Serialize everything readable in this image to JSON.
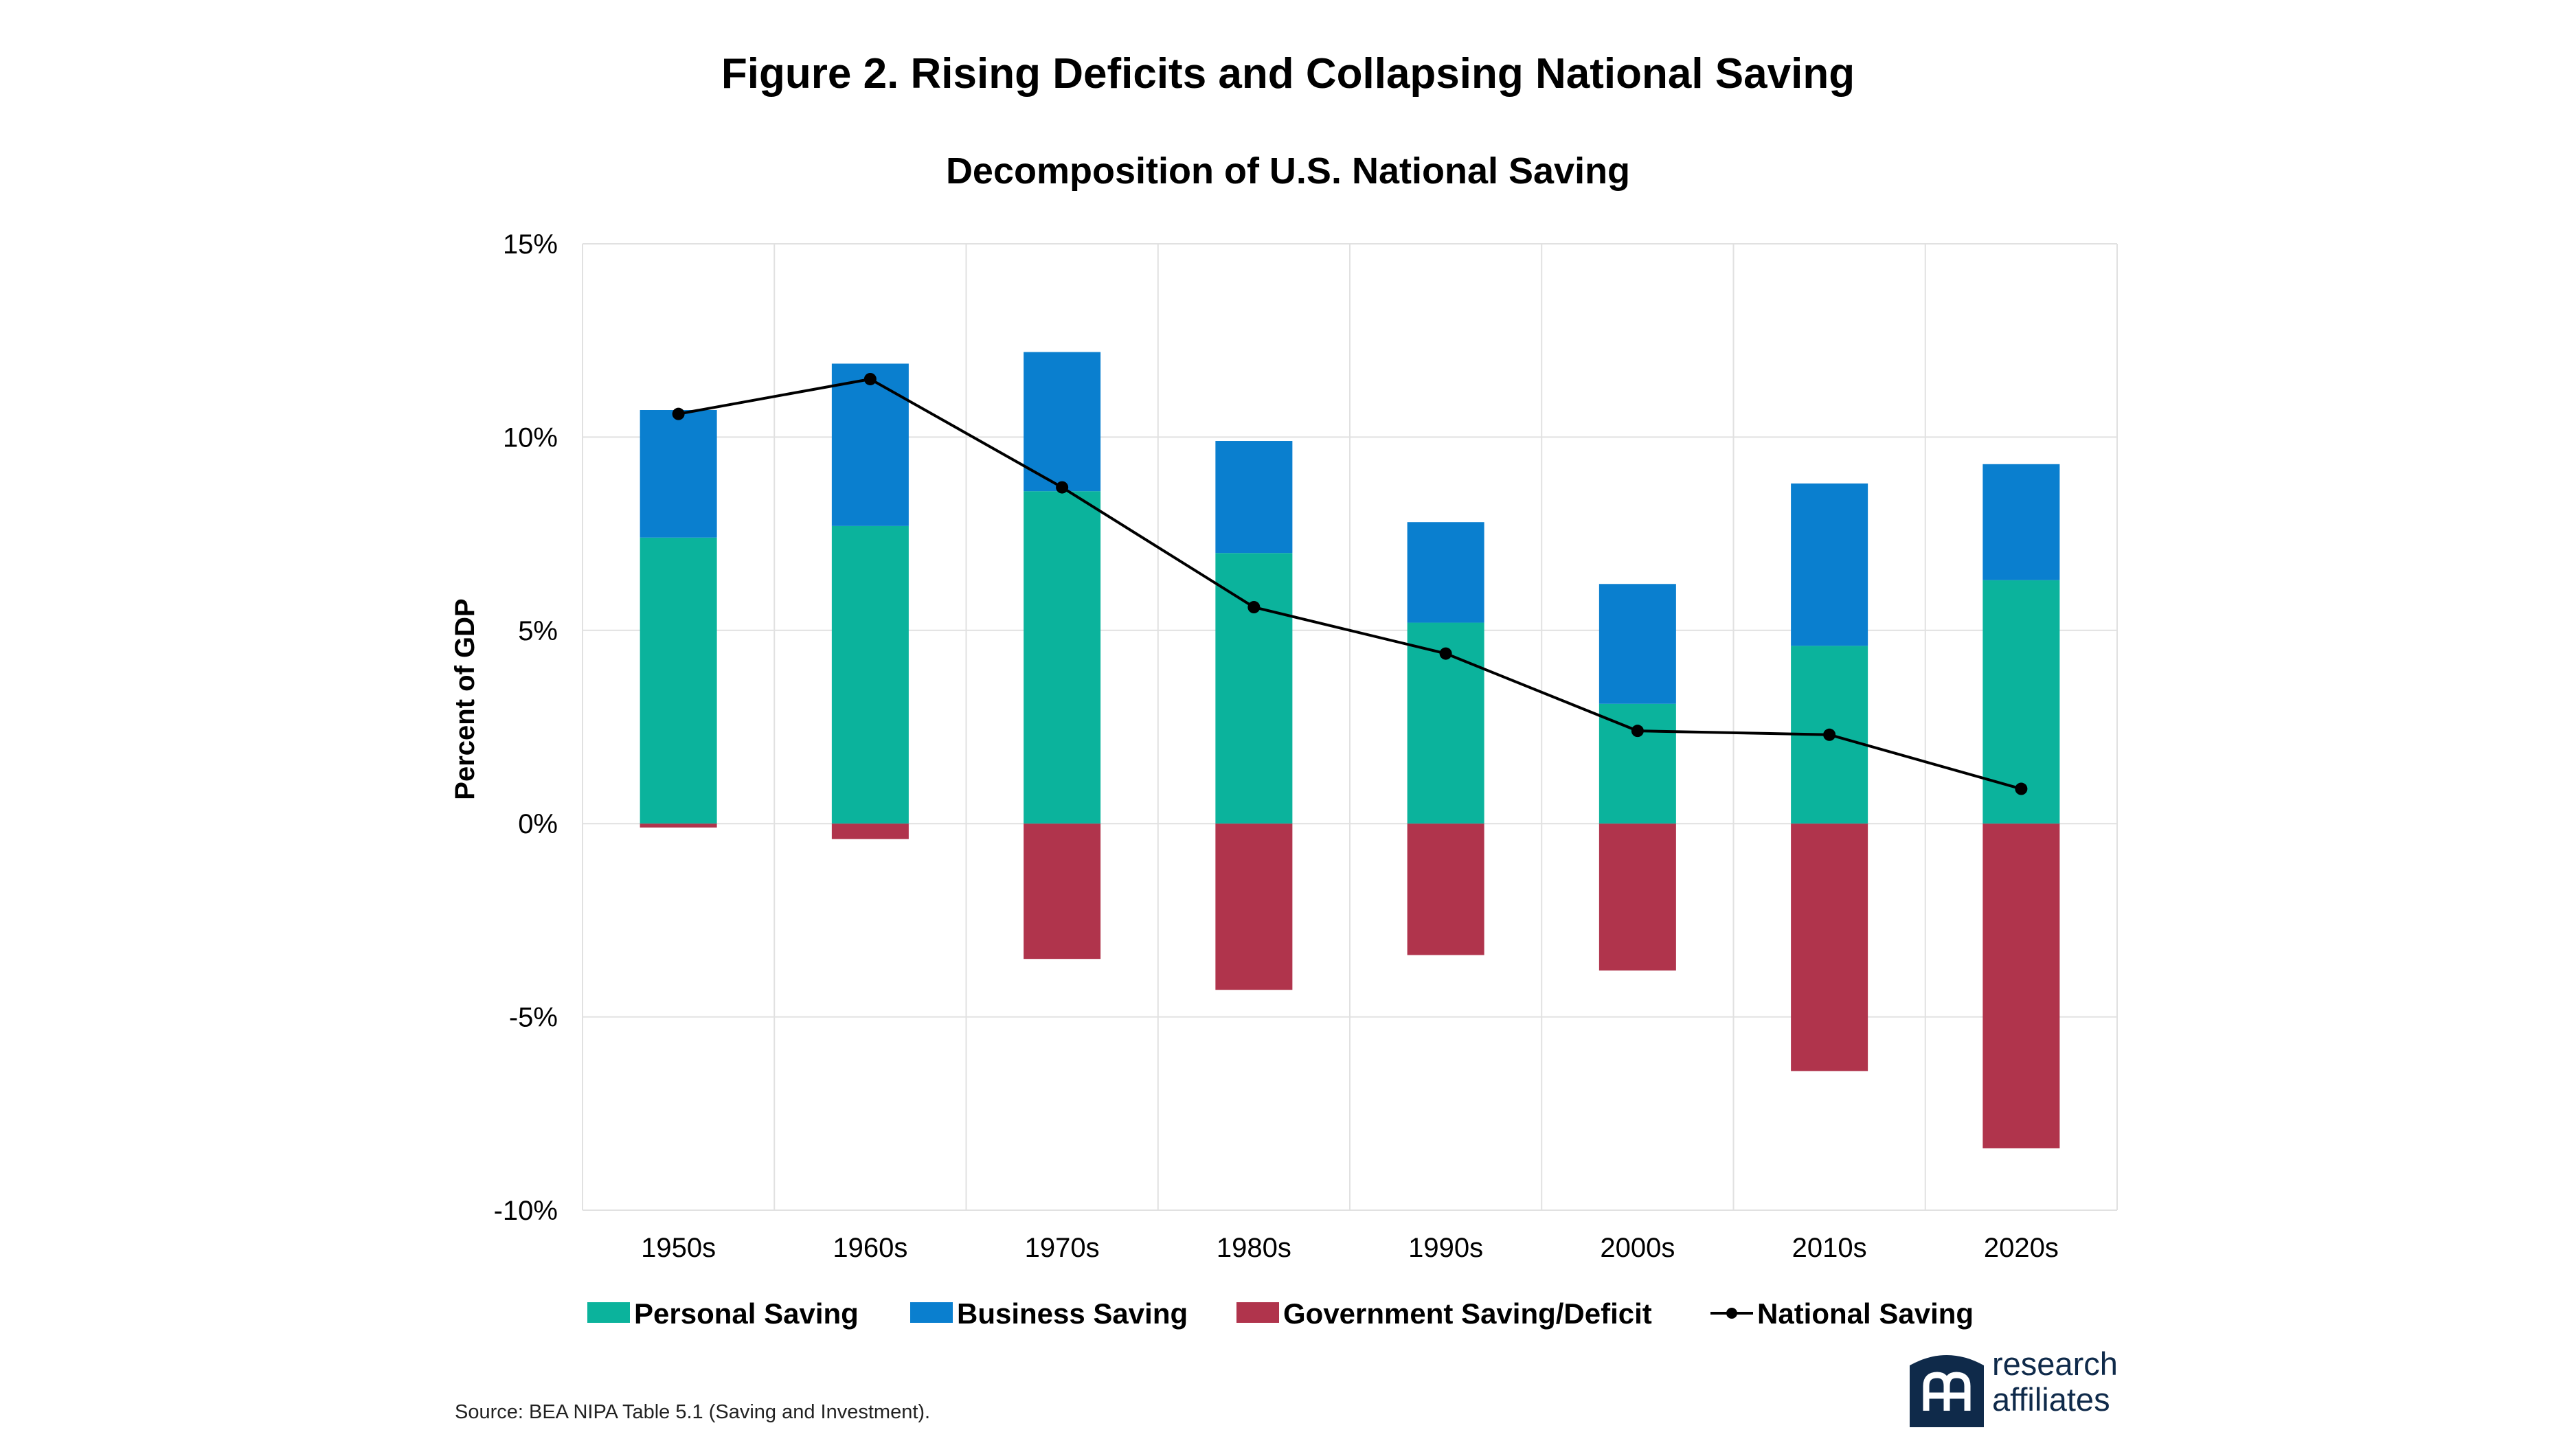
{
  "title": "Figure 2. Rising Deficits and Collapsing National Saving",
  "subtitle": "Decomposition of U.S. National Saving",
  "source": "Source: BEA NIPA Table 5.1 (Saving and Investment).",
  "logo": {
    "line1": "research",
    "line2": "affiliates"
  },
  "chart_data": {
    "type": "bar",
    "stacked": true,
    "categories": [
      "1950s",
      "1960s",
      "1970s",
      "1980s",
      "1990s",
      "2000s",
      "2010s",
      "2020s"
    ],
    "ylabel": "Percent of GDP",
    "xlabel": "",
    "ylim": [
      -10,
      15
    ],
    "yticks": [
      15,
      10,
      5,
      0,
      -5,
      -10
    ],
    "ytick_labels": [
      "15%",
      "10%",
      "5%",
      "0%",
      "-5%",
      "-10%"
    ],
    "grid": true,
    "legend_position": "bottom",
    "series": [
      {
        "name": "Personal Saving",
        "type": "bar",
        "color": "#0bb39c",
        "values": [
          7.4,
          7.7,
          8.6,
          7.0,
          5.2,
          3.1,
          4.6,
          6.3
        ]
      },
      {
        "name": "Business Saving",
        "type": "bar",
        "color": "#0a7fcf",
        "values": [
          3.3,
          4.2,
          3.6,
          2.9,
          2.6,
          3.1,
          4.2,
          3.0
        ]
      },
      {
        "name": "Government Saving/Deficit",
        "type": "bar",
        "color": "#b0344c",
        "values": [
          -0.1,
          -0.4,
          -3.5,
          -4.3,
          -3.4,
          -3.8,
          -6.4,
          -8.4
        ]
      },
      {
        "name": "National Saving",
        "type": "line",
        "color": "#000000",
        "values": [
          10.6,
          11.5,
          8.7,
          5.6,
          4.4,
          2.4,
          2.3,
          0.9
        ]
      }
    ]
  }
}
